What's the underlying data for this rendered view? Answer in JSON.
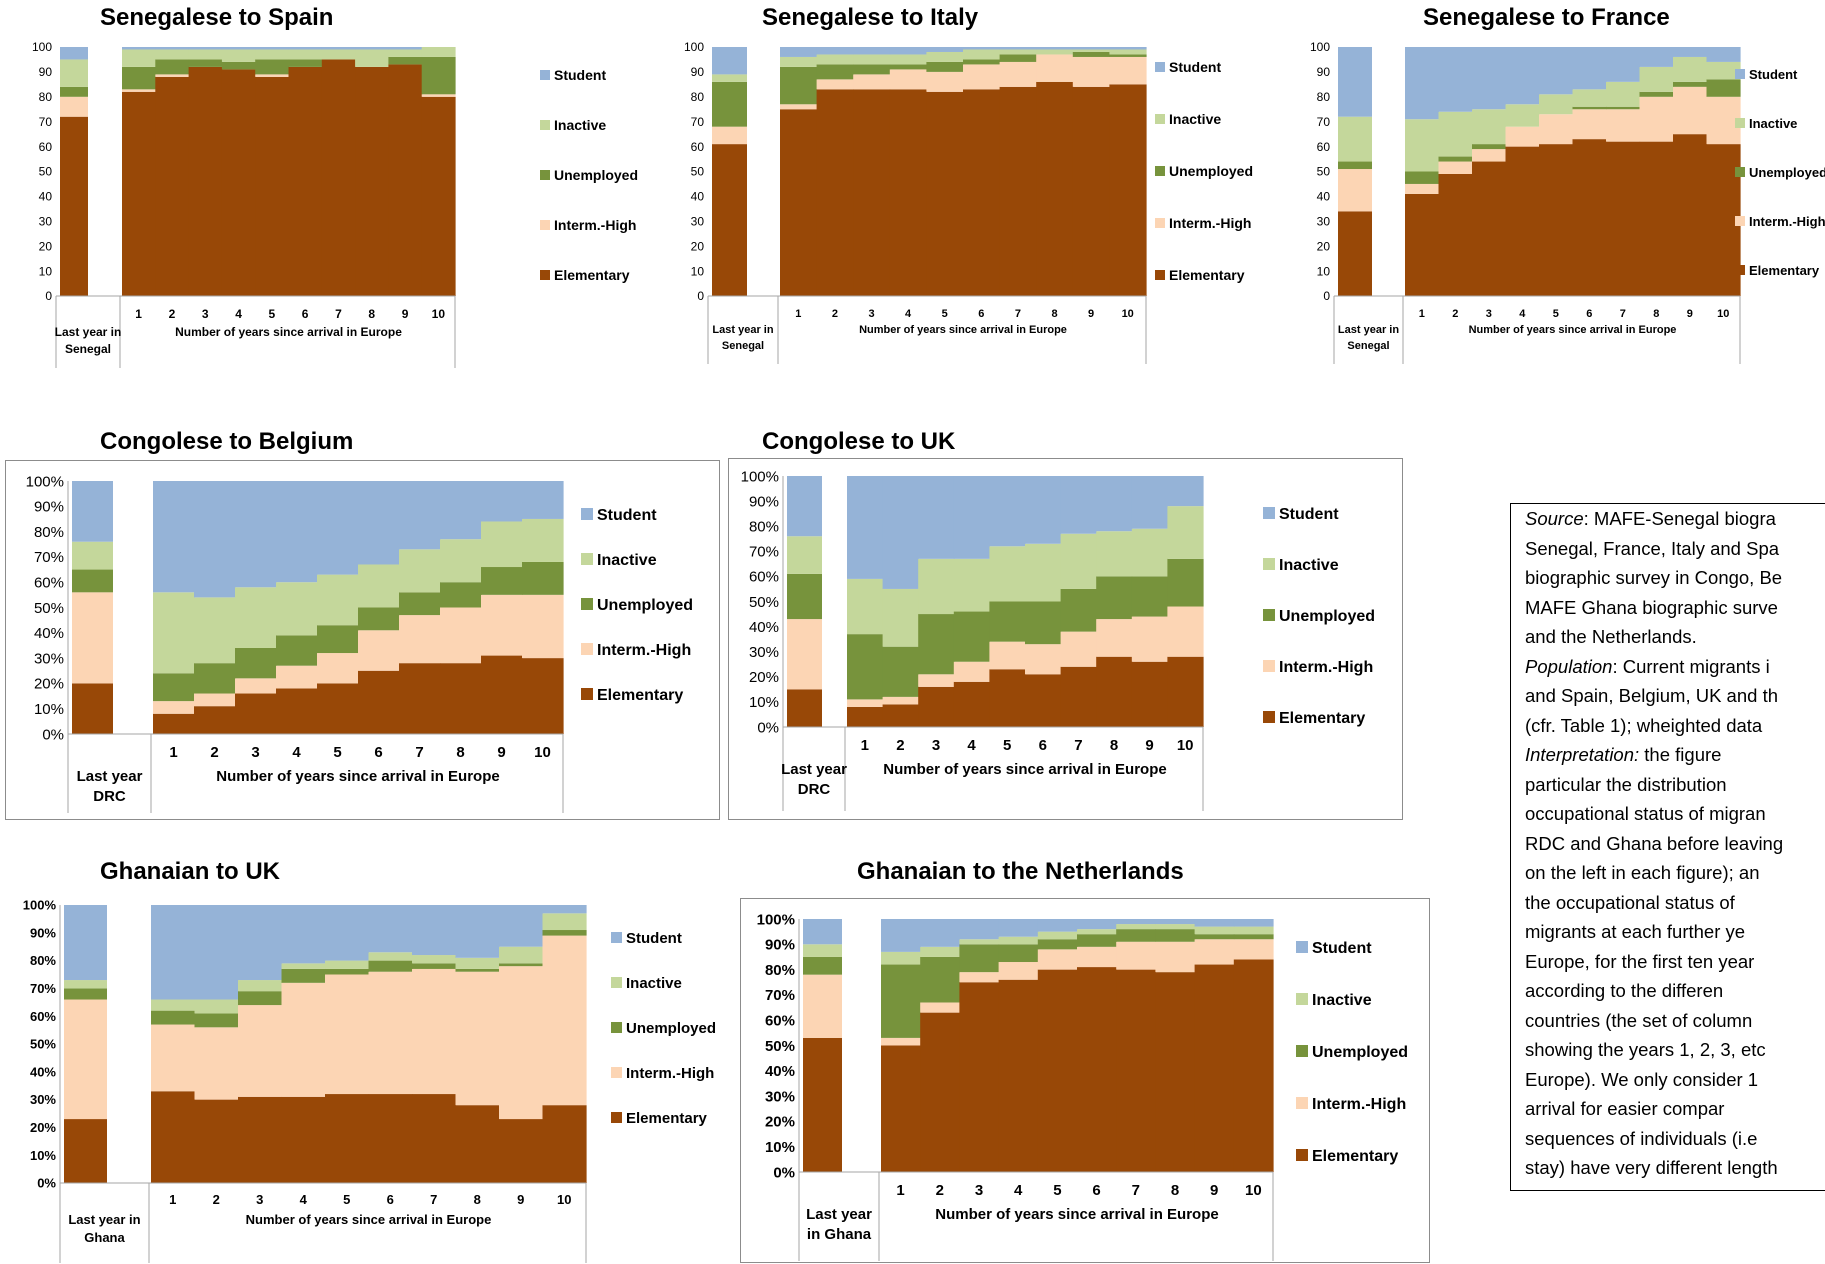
{
  "legend": {
    "student": "Student",
    "inactive": "Inactive",
    "unemployed": "Unemployed",
    "interm_high": "Interm.-High",
    "elementary": "Elementary"
  },
  "colors": {
    "student": "#95b3d7",
    "inactive": "#c4d79b",
    "unemployed": "#77933c",
    "interm_high": "#fcd5b4",
    "elementary": "#984807"
  },
  "note_lines": [
    [
      {
        "t": "Source",
        "i": true
      },
      {
        "t": ": MAFE-Senegal biogra"
      }
    ],
    [
      {
        "t": "Senegal, France, Italy and Spa"
      }
    ],
    [
      {
        "t": "biographic survey in Congo, Be"
      }
    ],
    [
      {
        "t": "MAFE Ghana biographic surve"
      }
    ],
    [
      {
        "t": "and the Netherlands."
      }
    ],
    [
      {
        "t": "Population",
        "i": true
      },
      {
        "t": ": Current migrants i"
      }
    ],
    [
      {
        "t": "and Spain, Belgium, UK and th"
      }
    ],
    [
      {
        "t": "(cfr. Table 1); wheighted data"
      }
    ],
    [
      {
        "t": "Interpretation:",
        "i": true
      },
      {
        "t": "   the   figure"
      }
    ],
    [
      {
        "t": "particular  the  distribution"
      }
    ],
    [
      {
        "t": "occupational status of migran"
      }
    ],
    [
      {
        "t": "RDC and Ghana before leaving"
      }
    ],
    [
      {
        "t": "on the left in each figure); an"
      }
    ],
    [
      {
        "t": "the  occupational  status  of"
      }
    ],
    [
      {
        "t": "migrants  at  each  further  ye"
      }
    ],
    [
      {
        "t": "Europe, for the first ten year"
      }
    ],
    [
      {
        "t": "according   to   the   differen"
      }
    ],
    [
      {
        "t": "countries (the set of column"
      }
    ],
    [
      {
        "t": "showing the years 1, 2, 3, etc"
      }
    ],
    [
      {
        "t": "Europe).  We  only  consider  1"
      }
    ],
    [
      {
        "t": "arrival   for   easier   compar"
      }
    ],
    [
      {
        "t": "sequences of individuals (i.e"
      }
    ],
    [
      {
        "t": "stay) have very different length"
      }
    ]
  ],
  "chart_data": [
    {
      "type": "area",
      "title": "Senegalese to Spain",
      "y_format": "number",
      "yticks": [
        0,
        10,
        20,
        30,
        40,
        50,
        60,
        70,
        80,
        90,
        100
      ],
      "ylim": [
        0,
        100
      ],
      "xlabel": "Number of years since arrival in Europe",
      "baseline_label": [
        "Last year in",
        "Senegal"
      ],
      "x": [
        1,
        2,
        3,
        4,
        5,
        6,
        7,
        8,
        9,
        10
      ],
      "baseline": {
        "elementary": 72,
        "interm_high": 80,
        "unemployed": 84,
        "inactive": 95,
        "student": 100
      },
      "series_cumulative": {
        "elementary": [
          82,
          88,
          92,
          91,
          88,
          92,
          95,
          92,
          93,
          80
        ],
        "interm_high": [
          83,
          89,
          92,
          91,
          89,
          92,
          95,
          92,
          93,
          81
        ],
        "unemployed": [
          92,
          95,
          95,
          94,
          95,
          95,
          95,
          92,
          96,
          96
        ],
        "inactive": [
          99,
          99,
          99,
          99,
          99,
          99,
          99,
          99,
          99,
          100
        ],
        "student": [
          100,
          100,
          100,
          100,
          100,
          100,
          100,
          100,
          100,
          100
        ]
      }
    },
    {
      "type": "area",
      "title": "Senegalese to Italy",
      "y_format": "number",
      "yticks": [
        0,
        10,
        20,
        30,
        40,
        50,
        60,
        70,
        80,
        90,
        100
      ],
      "ylim": [
        0,
        100
      ],
      "xlabel": "Number of years since arrival in Europe",
      "baseline_label": [
        "Last year in",
        "Senegal"
      ],
      "x": [
        1,
        2,
        3,
        4,
        5,
        6,
        7,
        8,
        9,
        10
      ],
      "baseline": {
        "elementary": 61,
        "interm_high": 68,
        "unemployed": 86,
        "inactive": 89,
        "student": 100
      },
      "series_cumulative": {
        "elementary": [
          75,
          83,
          83,
          83,
          82,
          83,
          84,
          86,
          84,
          85
        ],
        "interm_high": [
          77,
          87,
          89,
          91,
          90,
          93,
          94,
          97,
          96,
          96
        ],
        "unemployed": [
          92,
          93,
          93,
          93,
          94,
          95,
          97,
          97,
          98,
          97
        ],
        "inactive": [
          96,
          97,
          97,
          97,
          98,
          99,
          99,
          99,
          99,
          99
        ],
        "student": [
          100,
          100,
          100,
          100,
          100,
          100,
          100,
          100,
          100,
          100
        ]
      }
    },
    {
      "type": "area",
      "title": "Senegalese to France",
      "y_format": "number",
      "yticks": [
        0,
        10,
        20,
        30,
        40,
        50,
        60,
        70,
        80,
        90,
        100
      ],
      "ylim": [
        0,
        100
      ],
      "xlabel": "Number of years since arrival in Europe",
      "baseline_label": [
        "Last year in",
        "Senegal"
      ],
      "x": [
        1,
        2,
        3,
        4,
        5,
        6,
        7,
        8,
        9,
        10
      ],
      "baseline": {
        "elementary": 34,
        "interm_high": 51,
        "unemployed": 54,
        "inactive": 72,
        "student": 100
      },
      "series_cumulative": {
        "elementary": [
          41,
          49,
          54,
          60,
          61,
          63,
          62,
          62,
          65,
          61
        ],
        "interm_high": [
          45,
          54,
          59,
          68,
          73,
          75,
          75,
          80,
          84,
          80
        ],
        "unemployed": [
          50,
          56,
          61,
          68,
          73,
          76,
          76,
          82,
          86,
          87
        ],
        "inactive": [
          71,
          74,
          75,
          77,
          81,
          83,
          86,
          92,
          96,
          94
        ],
        "student": [
          100,
          100,
          100,
          100,
          100,
          100,
          100,
          100,
          100,
          100
        ]
      }
    },
    {
      "type": "area",
      "title": "Congolese to Belgium",
      "y_format": "percent",
      "yticks": [
        0,
        10,
        20,
        30,
        40,
        50,
        60,
        70,
        80,
        90,
        100
      ],
      "ylim": [
        0,
        100
      ],
      "xlabel": "Number of years since arrival in Europe",
      "baseline_label": [
        "Last year",
        "DRC"
      ],
      "x": [
        1,
        2,
        3,
        4,
        5,
        6,
        7,
        8,
        9,
        10
      ],
      "baseline": {
        "elementary": 20,
        "interm_high": 56,
        "unemployed": 65,
        "inactive": 76,
        "student": 100
      },
      "series_cumulative": {
        "elementary": [
          8,
          11,
          16,
          18,
          20,
          25,
          28,
          28,
          31,
          30
        ],
        "interm_high": [
          13,
          16,
          22,
          27,
          32,
          41,
          47,
          50,
          55,
          55
        ],
        "unemployed": [
          24,
          28,
          34,
          39,
          43,
          50,
          56,
          60,
          66,
          68
        ],
        "inactive": [
          56,
          54,
          58,
          60,
          63,
          67,
          73,
          77,
          84,
          85
        ],
        "student": [
          100,
          100,
          100,
          100,
          100,
          100,
          100,
          100,
          100,
          100
        ]
      }
    },
    {
      "type": "area",
      "title": "Congolese to UK",
      "y_format": "percent",
      "yticks": [
        0,
        10,
        20,
        30,
        40,
        50,
        60,
        70,
        80,
        90,
        100
      ],
      "ylim": [
        0,
        100
      ],
      "xlabel": "Number of years since arrival in Europe",
      "baseline_label": [
        "Last year",
        "DRC"
      ],
      "x": [
        1,
        2,
        3,
        4,
        5,
        6,
        7,
        8,
        9,
        10
      ],
      "baseline": {
        "elementary": 15,
        "interm_high": 43,
        "unemployed": 61,
        "inactive": 76,
        "student": 100
      },
      "series_cumulative": {
        "elementary": [
          8,
          9,
          16,
          18,
          23,
          21,
          24,
          28,
          26,
          28
        ],
        "interm_high": [
          11,
          12,
          21,
          26,
          34,
          33,
          38,
          43,
          44,
          48
        ],
        "unemployed": [
          37,
          32,
          45,
          46,
          50,
          50,
          55,
          60,
          60,
          67
        ],
        "inactive": [
          59,
          55,
          67,
          67,
          72,
          73,
          77,
          78,
          79,
          88
        ],
        "student": [
          100,
          100,
          100,
          100,
          100,
          100,
          100,
          100,
          100,
          100
        ]
      }
    },
    {
      "type": "area",
      "title": "Ghanaian to UK",
      "y_format": "percent",
      "yticks": [
        0,
        10,
        20,
        30,
        40,
        50,
        60,
        70,
        80,
        90,
        100
      ],
      "ylim": [
        0,
        100
      ],
      "xlabel": "Number of years since arrival in Europe",
      "baseline_label": [
        "Last year in",
        "Ghana"
      ],
      "x": [
        1,
        2,
        3,
        4,
        5,
        6,
        7,
        8,
        9,
        10
      ],
      "baseline": {
        "elementary": 23,
        "interm_high": 66,
        "unemployed": 70,
        "inactive": 73,
        "student": 100
      },
      "series_cumulative": {
        "elementary": [
          33,
          30,
          31,
          31,
          32,
          32,
          32,
          28,
          23,
          28
        ],
        "interm_high": [
          57,
          56,
          64,
          72,
          75,
          76,
          77,
          76,
          78,
          89
        ],
        "unemployed": [
          62,
          61,
          69,
          77,
          77,
          80,
          79,
          77,
          79,
          91
        ],
        "inactive": [
          66,
          66,
          73,
          79,
          80,
          83,
          82,
          81,
          85,
          97
        ],
        "student": [
          100,
          100,
          100,
          100,
          100,
          100,
          100,
          100,
          100,
          100
        ]
      }
    },
    {
      "type": "area",
      "title": "Ghanaian to the Netherlands",
      "y_format": "percent",
      "yticks": [
        0,
        10,
        20,
        30,
        40,
        50,
        60,
        70,
        80,
        90,
        100
      ],
      "ylim": [
        0,
        100
      ],
      "xlabel": "Number of years since arrival in Europe",
      "baseline_label": [
        "Last year",
        "in Ghana"
      ],
      "x": [
        1,
        2,
        3,
        4,
        5,
        6,
        7,
        8,
        9,
        10
      ],
      "baseline": {
        "elementary": 53,
        "interm_high": 78,
        "unemployed": 85,
        "inactive": 90,
        "student": 100
      },
      "series_cumulative": {
        "elementary": [
          50,
          63,
          75,
          76,
          80,
          81,
          80,
          79,
          82,
          84
        ],
        "interm_high": [
          53,
          67,
          79,
          83,
          88,
          89,
          91,
          91,
          92,
          92
        ],
        "unemployed": [
          82,
          85,
          90,
          90,
          92,
          94,
          96,
          96,
          94,
          94
        ],
        "inactive": [
          87,
          89,
          92,
          93,
          95,
          96,
          98,
          98,
          97,
          97
        ],
        "student": [
          100,
          100,
          100,
          100,
          100,
          100,
          100,
          100,
          100,
          100
        ]
      }
    }
  ]
}
